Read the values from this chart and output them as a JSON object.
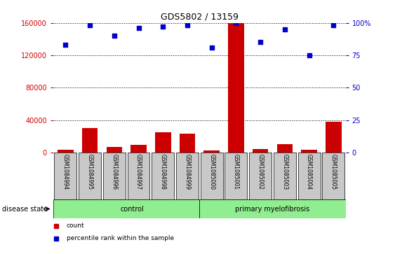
{
  "title": "GDS5802 / 13159",
  "samples": [
    "GSM1084994",
    "GSM1084995",
    "GSM1084996",
    "GSM1084997",
    "GSM1084998",
    "GSM1084999",
    "GSM1085000",
    "GSM1085001",
    "GSM1085002",
    "GSM1085003",
    "GSM1085004",
    "GSM1085005"
  ],
  "counts": [
    3000,
    30000,
    7000,
    9000,
    25000,
    23000,
    2000,
    160000,
    4000,
    10000,
    3000,
    38000
  ],
  "percentiles": [
    83,
    98,
    90,
    96,
    97,
    98,
    81,
    100,
    85,
    95,
    75,
    98
  ],
  "ylim_left": [
    0,
    160000
  ],
  "ylim_right": [
    0,
    100
  ],
  "yticks_left": [
    0,
    40000,
    80000,
    120000,
    160000
  ],
  "yticks_right_labels": [
    "0",
    "25",
    "50",
    "75",
    "100%"
  ],
  "yticks_right_vals": [
    0,
    25,
    50,
    75,
    100
  ],
  "groups": [
    {
      "label": "control",
      "start": 0,
      "end": 6,
      "color": "#90EE90"
    },
    {
      "label": "primary myelofibrosis",
      "start": 6,
      "end": 12,
      "color": "#90EE90"
    }
  ],
  "group_label": "disease state",
  "bar_color": "#CC0000",
  "dot_color": "#0000CC",
  "legend_items": [
    {
      "label": "count",
      "color": "#CC0000"
    },
    {
      "label": "percentile rank within the sample",
      "color": "#0000CC"
    }
  ],
  "background_color": "#FFFFFF",
  "plot_bg_color": "#FFFFFF",
  "grid_color": "#000000",
  "tick_label_color_left": "#CC0000",
  "tick_label_color_right": "#0000CC",
  "sample_box_color": "#C8C8C8"
}
